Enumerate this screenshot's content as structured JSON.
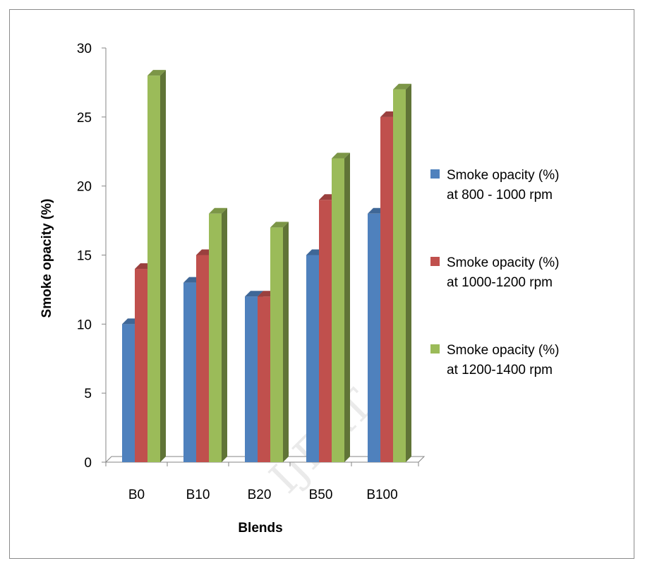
{
  "chart_data": {
    "type": "bar",
    "categories": [
      "B0",
      "B10",
      "B20",
      "B50",
      "B100"
    ],
    "series": [
      {
        "name": "Smoke opacity (%) at 800 - 1000 rpm",
        "label_lines": [
          "Smoke opacity (%)",
          "at 800 - 1000 rpm"
        ],
        "values": [
          10,
          13,
          12,
          15,
          18
        ],
        "color": "#4f81bd"
      },
      {
        "name": "Smoke opacity (%) at 1000-1200 rpm",
        "label_lines": [
          "Smoke opacity (%)",
          "at 1000-1200 rpm"
        ],
        "values": [
          14,
          15,
          12,
          19,
          25
        ],
        "color": "#c0504d"
      },
      {
        "name": "Smoke opacity (%) at 1200-1400 rpm",
        "label_lines": [
          "Smoke opacity (%)",
          "at 1200-1400 rpm"
        ],
        "values": [
          28,
          18,
          17,
          22,
          27
        ],
        "color": "#9bbb59"
      }
    ],
    "xlabel": "Blends",
    "ylabel": "Smoke opacity (%)",
    "ylim": [
      0,
      30
    ],
    "yticks": [
      0,
      5,
      10,
      15,
      20,
      25,
      30
    ],
    "grid": false,
    "legend_position": "right",
    "three_d": true
  },
  "watermark": "IJERT"
}
